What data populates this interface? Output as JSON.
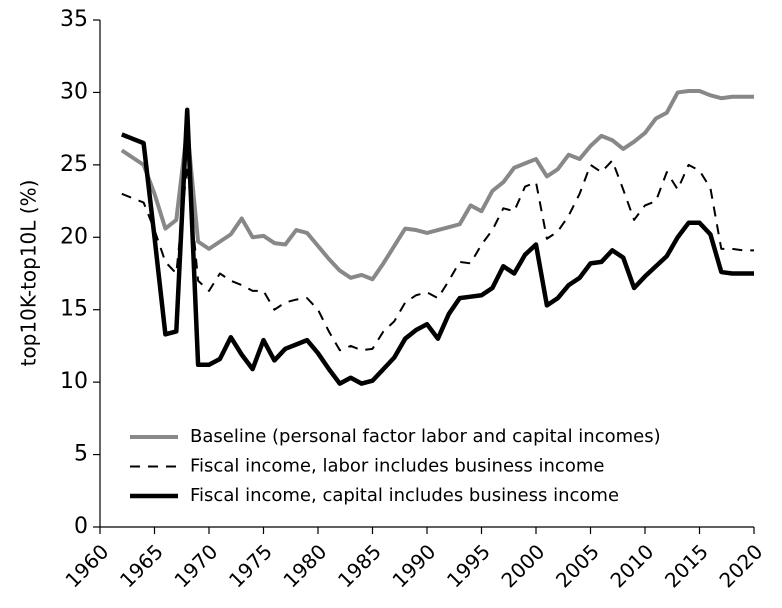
{
  "chart_data": {
    "type": "line",
    "y_label": "top10K-top10L (%)",
    "x": [
      1962,
      1963,
      1964,
      1965,
      1966,
      1967,
      1968,
      1969,
      1970,
      1971,
      1972,
      1973,
      1974,
      1975,
      1976,
      1977,
      1978,
      1979,
      1980,
      1981,
      1982,
      1983,
      1984,
      1985,
      1986,
      1987,
      1988,
      1989,
      1990,
      1991,
      1992,
      1993,
      1994,
      1995,
      1996,
      1997,
      1998,
      1999,
      2000,
      2001,
      2002,
      2003,
      2004,
      2005,
      2006,
      2007,
      2008,
      2009,
      2010,
      2011,
      2012,
      2013,
      2014,
      2015,
      2016,
      2017,
      2018,
      2019,
      2020
    ],
    "series": [
      {
        "name": "Baseline (personal factor labor and capital incomes)",
        "color": "#888888",
        "dash": "solid",
        "width": 4,
        "values": [
          26.0,
          25.5,
          25.0,
          23.0,
          20.6,
          21.2,
          27.5,
          19.7,
          19.2,
          19.7,
          20.2,
          21.3,
          20.0,
          20.1,
          19.6,
          19.5,
          20.5,
          20.3,
          19.4,
          18.5,
          17.7,
          17.2,
          17.4,
          17.1,
          18.2,
          19.4,
          20.6,
          20.5,
          20.3,
          20.5,
          20.7,
          20.9,
          22.2,
          21.8,
          23.2,
          23.8,
          24.8,
          25.1,
          25.4,
          24.2,
          24.7,
          25.7,
          25.4,
          26.3,
          27.0,
          26.7,
          26.1,
          26.6,
          27.2,
          28.2,
          28.6,
          30.0,
          30.1,
          30.1,
          29.8,
          29.6,
          29.7,
          29.7,
          29.7
        ]
      },
      {
        "name": "Fiscal income, labor includes business income",
        "color": "#000000",
        "dash": "dashed",
        "width": 2,
        "values": [
          23.0,
          22.7,
          22.4,
          20.5,
          18.3,
          17.5,
          25.0,
          17.0,
          16.3,
          17.5,
          17.0,
          16.7,
          16.3,
          16.3,
          15.0,
          15.5,
          15.7,
          15.8,
          15.0,
          13.5,
          12.2,
          12.5,
          12.2,
          12.3,
          13.5,
          14.2,
          15.5,
          16.0,
          16.2,
          15.8,
          17.0,
          18.3,
          18.2,
          19.5,
          20.5,
          22.0,
          21.8,
          23.5,
          23.8,
          19.9,
          20.4,
          21.5,
          23.0,
          25.0,
          24.5,
          25.3,
          23.3,
          21.2,
          22.2,
          22.5,
          24.5,
          23.3,
          25.0,
          24.6,
          23.4,
          19.2,
          19.2,
          19.1,
          19.1
        ]
      },
      {
        "name": "Fiscal income, capital includes business income",
        "color": "#000000",
        "dash": "solid",
        "width": 4.5,
        "values": [
          27.1,
          26.8,
          26.5,
          20.0,
          13.3,
          13.5,
          28.8,
          11.2,
          11.2,
          11.6,
          13.1,
          11.9,
          10.9,
          12.9,
          11.5,
          12.3,
          12.6,
          12.9,
          12.0,
          10.9,
          9.9,
          10.3,
          9.9,
          10.1,
          10.9,
          11.7,
          13.0,
          13.6,
          14.0,
          13.0,
          14.7,
          15.8,
          15.9,
          16.0,
          16.5,
          18.0,
          17.5,
          18.8,
          19.5,
          15.3,
          15.8,
          16.7,
          17.2,
          18.2,
          18.3,
          19.1,
          18.6,
          16.5,
          17.3,
          18.0,
          18.7,
          20.0,
          21.0,
          21.0,
          20.2,
          17.6,
          17.5,
          17.5,
          17.5
        ]
      }
    ],
    "xlim": [
      1960,
      2020
    ],
    "xticks": [
      1960,
      1965,
      1970,
      1975,
      1980,
      1985,
      1990,
      1995,
      2000,
      2005,
      2010,
      2015,
      2020
    ],
    "ylim": [
      0,
      35
    ],
    "yticks": [
      0,
      5,
      10,
      15,
      20,
      25,
      30,
      35
    ],
    "legend": "lower-left"
  }
}
